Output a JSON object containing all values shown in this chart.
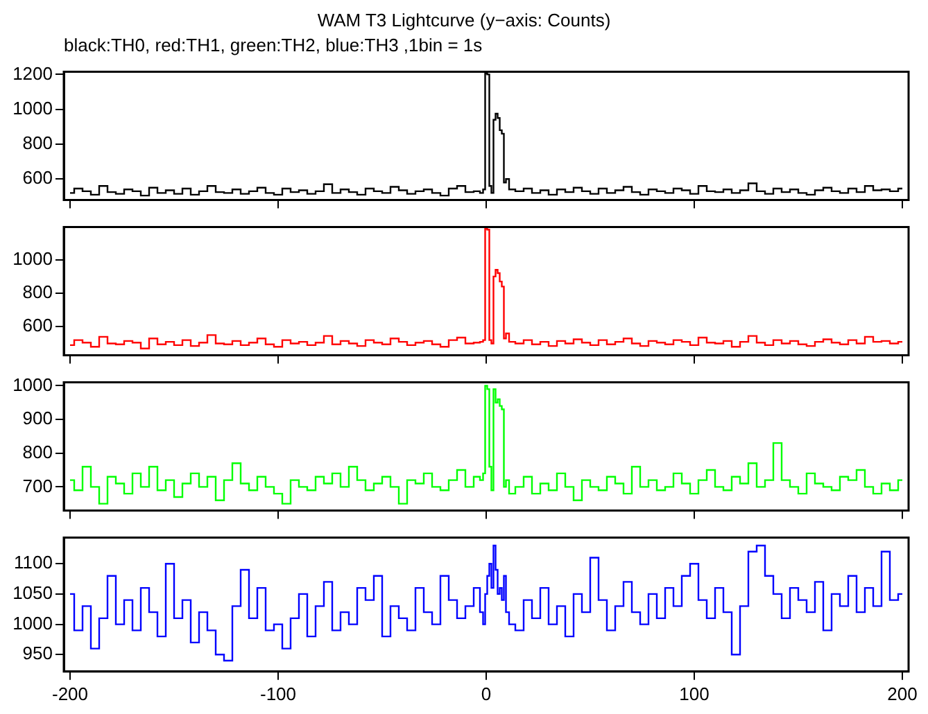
{
  "chart_data": [
    {
      "type": "step",
      "title": "WAM T3 Lightcurve (y−axis: Counts)",
      "subtitle": "black:TH0, red:TH1, green:TH2, blue:TH3 ,1bin = 1s",
      "tick_labels": "y",
      "xlim": [
        -203,
        203
      ],
      "xticks": [
        -200,
        -100,
        0,
        100,
        200
      ],
      "ylim": [
        480,
        1215
      ],
      "yticks": [
        600,
        800,
        1000,
        1200
      ],
      "x": [
        -200,
        -196,
        -192,
        -188,
        -184,
        -180,
        -176,
        -172,
        -168,
        -164,
        -160,
        -156,
        -152,
        -148,
        -144,
        -140,
        -136,
        -132,
        -128,
        -124,
        -120,
        -116,
        -112,
        -108,
        -104,
        -100,
        -96,
        -92,
        -88,
        -84,
        -80,
        -76,
        -72,
        -68,
        -64,
        -60,
        -56,
        -52,
        -48,
        -44,
        -40,
        -36,
        -32,
        -28,
        -24,
        -20,
        -16,
        -12,
        -8,
        -4,
        -2,
        -1,
        0,
        1,
        2,
        3,
        4,
        5,
        6,
        7,
        8,
        9,
        10,
        12,
        16,
        20,
        24,
        28,
        32,
        36,
        40,
        44,
        48,
        52,
        56,
        60,
        64,
        68,
        72,
        76,
        80,
        84,
        88,
        92,
        96,
        100,
        104,
        108,
        112,
        116,
        120,
        124,
        128,
        132,
        136,
        140,
        144,
        148,
        152,
        156,
        160,
        164,
        168,
        172,
        176,
        180,
        184,
        188,
        192,
        196,
        200
      ],
      "series": [
        {
          "color": "#000000",
          "values": [
            520,
            545,
            530,
            510,
            560,
            525,
            515,
            540,
            530,
            505,
            550,
            520,
            535,
            515,
            545,
            510,
            530,
            560,
            525,
            520,
            540,
            515,
            530,
            550,
            520,
            510,
            545,
            525,
            535,
            515,
            530,
            570,
            520,
            540,
            525,
            510,
            545,
            530,
            520,
            555,
            535,
            515,
            530,
            540,
            520,
            505,
            545,
            560,
            525,
            530,
            520,
            540,
            1205,
            1200,
            560,
            520,
            940,
            975,
            950,
            880,
            860,
            580,
            600,
            540,
            530,
            545,
            520,
            535,
            510,
            540,
            525,
            550,
            530,
            515,
            545,
            520,
            535,
            555,
            525,
            510,
            540,
            530,
            520,
            545,
            535,
            515,
            560,
            530,
            525,
            540,
            520,
            535,
            575,
            530,
            515,
            545,
            525,
            540,
            520,
            510,
            535,
            550,
            530,
            520,
            545,
            525,
            560,
            535,
            540,
            530,
            545
          ]
        }
      ]
    },
    {
      "type": "step",
      "tick_labels": "y",
      "xlim": [
        -203,
        203
      ],
      "xticks": [
        -200,
        -100,
        0,
        100,
        200
      ],
      "ylim": [
        430,
        1195
      ],
      "yticks": [
        600,
        800,
        1000
      ],
      "x": [
        -200,
        -196,
        -192,
        -188,
        -184,
        -180,
        -176,
        -172,
        -168,
        -164,
        -160,
        -156,
        -152,
        -148,
        -144,
        -140,
        -136,
        -132,
        -128,
        -124,
        -120,
        -116,
        -112,
        -108,
        -104,
        -100,
        -96,
        -92,
        -88,
        -84,
        -80,
        -76,
        -72,
        -68,
        -64,
        -60,
        -56,
        -52,
        -48,
        -44,
        -40,
        -36,
        -32,
        -28,
        -24,
        -20,
        -16,
        -12,
        -8,
        -4,
        -2,
        -1,
        0,
        1,
        2,
        3,
        4,
        5,
        6,
        7,
        8,
        9,
        10,
        12,
        16,
        20,
        24,
        28,
        32,
        36,
        40,
        44,
        48,
        52,
        56,
        60,
        64,
        68,
        72,
        76,
        80,
        84,
        88,
        92,
        96,
        100,
        104,
        108,
        112,
        116,
        120,
        124,
        128,
        132,
        136,
        140,
        144,
        148,
        152,
        156,
        160,
        164,
        168,
        172,
        176,
        180,
        184,
        188,
        192,
        196,
        200
      ],
      "series": [
        {
          "color": "#ff0000",
          "values": [
            490,
            520,
            505,
            480,
            540,
            500,
            495,
            515,
            505,
            470,
            530,
            495,
            510,
            490,
            520,
            485,
            505,
            550,
            500,
            495,
            515,
            490,
            505,
            530,
            495,
            480,
            520,
            500,
            510,
            490,
            505,
            545,
            495,
            515,
            500,
            485,
            520,
            505,
            495,
            530,
            510,
            490,
            505,
            515,
            495,
            480,
            520,
            535,
            500,
            505,
            510,
            520,
            1185,
            1180,
            520,
            500,
            900,
            940,
            920,
            870,
            840,
            530,
            560,
            510,
            500,
            520,
            495,
            510,
            485,
            515,
            500,
            525,
            505,
            490,
            520,
            495,
            510,
            530,
            500,
            485,
            515,
            505,
            495,
            520,
            510,
            490,
            535,
            505,
            500,
            515,
            480,
            510,
            545,
            505,
            490,
            520,
            500,
            515,
            495,
            485,
            510,
            525,
            505,
            495,
            520,
            500,
            540,
            510,
            515,
            500,
            510
          ]
        }
      ]
    },
    {
      "type": "step",
      "tick_labels": "y",
      "xlim": [
        -203,
        203
      ],
      "xticks": [
        -200,
        -100,
        0,
        100,
        200
      ],
      "ylim": [
        630,
        1010
      ],
      "yticks": [
        700,
        800,
        900,
        1000
      ],
      "x": [
        -200,
        -196,
        -192,
        -188,
        -184,
        -180,
        -176,
        -172,
        -168,
        -164,
        -160,
        -156,
        -152,
        -148,
        -144,
        -140,
        -136,
        -132,
        -128,
        -124,
        -120,
        -116,
        -112,
        -108,
        -104,
        -100,
        -96,
        -92,
        -88,
        -84,
        -80,
        -76,
        -72,
        -68,
        -64,
        -60,
        -56,
        -52,
        -48,
        -44,
        -40,
        -36,
        -32,
        -28,
        -24,
        -20,
        -16,
        -12,
        -8,
        -4,
        -2,
        -1,
        0,
        1,
        2,
        3,
        4,
        5,
        6,
        7,
        8,
        9,
        10,
        12,
        16,
        20,
        24,
        28,
        32,
        36,
        40,
        44,
        48,
        52,
        56,
        60,
        64,
        68,
        72,
        76,
        80,
        84,
        88,
        92,
        96,
        100,
        104,
        108,
        112,
        116,
        120,
        124,
        128,
        132,
        136,
        140,
        144,
        148,
        152,
        156,
        160,
        164,
        168,
        172,
        176,
        180,
        184,
        188,
        192,
        196,
        200
      ],
      "series": [
        {
          "color": "#00ff00",
          "values": [
            720,
            690,
            760,
            700,
            650,
            730,
            710,
            680,
            740,
            700,
            760,
            690,
            720,
            670,
            710,
            740,
            700,
            730,
            660,
            720,
            770,
            710,
            690,
            730,
            700,
            680,
            650,
            720,
            700,
            690,
            730,
            710,
            740,
            700,
            760,
            720,
            690,
            710,
            730,
            700,
            650,
            720,
            710,
            740,
            700,
            690,
            720,
            750,
            700,
            730,
            720,
            740,
            1000,
            990,
            760,
            690,
            990,
            950,
            960,
            940,
            930,
            700,
            720,
            680,
            700,
            730,
            680,
            710,
            690,
            740,
            700,
            660,
            720,
            700,
            690,
            730,
            710,
            680,
            760,
            700,
            720,
            690,
            700,
            740,
            710,
            680,
            720,
            750,
            700,
            690,
            730,
            710,
            770,
            700,
            720,
            830,
            720,
            700,
            680,
            740,
            710,
            700,
            690,
            730,
            720,
            750,
            700,
            680,
            710,
            690,
            720
          ]
        }
      ]
    },
    {
      "type": "step",
      "xlim": [
        -203,
        203
      ],
      "xticks": [
        -200,
        -100,
        0,
        100,
        200
      ],
      "ylim": [
        922,
        1143
      ],
      "yticks": [
        950,
        1000,
        1050,
        1100
      ],
      "x": [
        -200,
        -196,
        -192,
        -188,
        -184,
        -180,
        -176,
        -172,
        -168,
        -164,
        -160,
        -156,
        -152,
        -148,
        -144,
        -140,
        -136,
        -132,
        -128,
        -124,
        -120,
        -116,
        -112,
        -108,
        -104,
        -100,
        -96,
        -92,
        -88,
        -84,
        -80,
        -76,
        -72,
        -68,
        -64,
        -60,
        -56,
        -52,
        -48,
        -44,
        -40,
        -36,
        -32,
        -28,
        -24,
        -20,
        -16,
        -12,
        -8,
        -4,
        -2,
        -1,
        0,
        1,
        2,
        3,
        4,
        5,
        6,
        7,
        8,
        9,
        10,
        12,
        16,
        20,
        24,
        28,
        32,
        36,
        40,
        44,
        48,
        52,
        56,
        60,
        64,
        68,
        72,
        76,
        80,
        84,
        88,
        92,
        96,
        100,
        104,
        108,
        112,
        116,
        120,
        124,
        128,
        132,
        136,
        140,
        144,
        148,
        152,
        156,
        160,
        164,
        168,
        172,
        176,
        180,
        184,
        188,
        192,
        196,
        200
      ],
      "series": [
        {
          "color": "#0000ff",
          "values": [
            1050,
            990,
            1030,
            960,
            1010,
            1080,
            1000,
            1040,
            990,
            1060,
            1020,
            980,
            1100,
            1010,
            1040,
            970,
            1020,
            990,
            950,
            940,
            1030,
            1090,
            1010,
            1060,
            990,
            1000,
            960,
            1010,
            1050,
            980,
            1030,
            1070,
            990,
            1020,
            1000,
            1060,
            1040,
            1080,
            980,
            1030,
            1010,
            990,
            1060,
            1020,
            1000,
            1080,
            1040,
            1010,
            1030,
            1060,
            1020,
            1000,
            1050,
            1080,
            1100,
            1060,
            1130,
            1090,
            1050,
            1060,
            1040,
            1080,
            1020,
            1000,
            990,
            1040,
            1010,
            1060,
            1000,
            1030,
            980,
            1050,
            1020,
            1110,
            1040,
            990,
            1030,
            1070,
            1020,
            1000,
            1050,
            1010,
            1060,
            1030,
            1080,
            1100,
            1040,
            1010,
            1060,
            1020,
            950,
            1030,
            1120,
            1130,
            1080,
            1050,
            1010,
            1060,
            1040,
            1020,
            1070,
            990,
            1050,
            1030,
            1080,
            1020,
            1060,
            1030,
            1120,
            1040,
            1050
          ]
        }
      ]
    }
  ]
}
